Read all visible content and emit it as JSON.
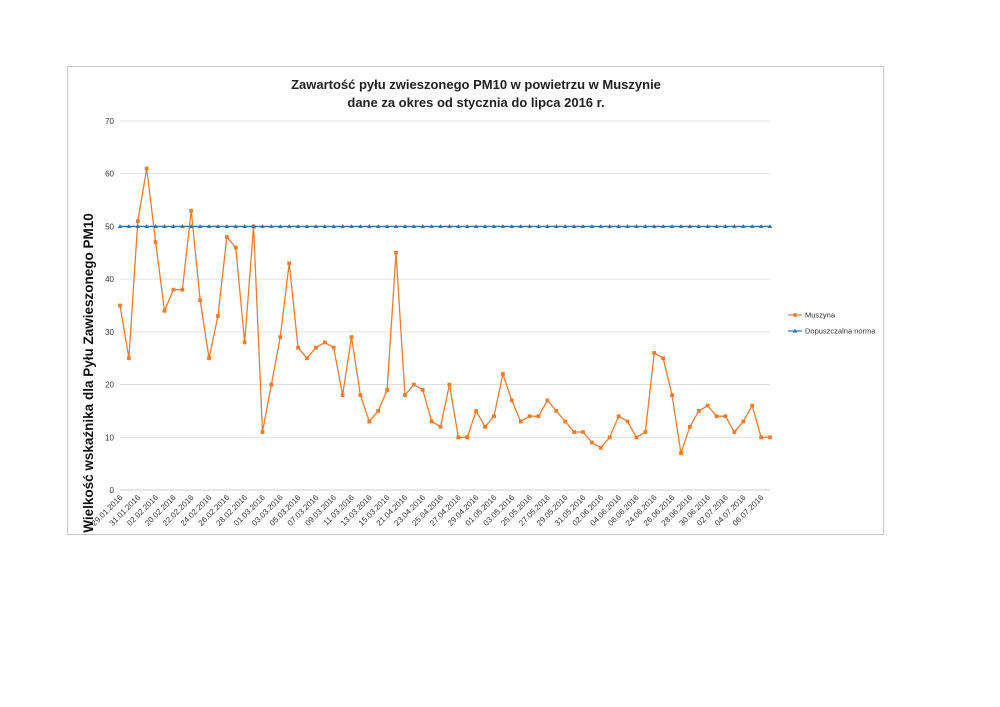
{
  "chart_data": {
    "type": "line",
    "title": "Zawartość pyłu zwieszonego PM10 w powietrzu w Muszynie",
    "subtitle": "dane za okres od stycznia do lipca 2016 r.",
    "xlabel": "",
    "ylabel": "Wielkość  wskaźnika dla Pyłu Zawieszonego PM10",
    "ylim": [
      0,
      70
    ],
    "yticks": [
      0,
      10,
      20,
      30,
      40,
      50,
      60,
      70
    ],
    "grid": true,
    "legend_position": "right",
    "x_tick_labels": [
      "29.01.2016",
      "31.01.2016",
      "02.02.2016",
      "20.02.2016",
      "22.02.2016",
      "24.02.2016",
      "26.02.2016",
      "28.02.2016",
      "01.03.2016",
      "03.03.2016",
      "05.03.2016",
      "07.03.2016",
      "09.03.2016",
      "11.03.2016",
      "13.03.2016",
      "15.03.2016",
      "21.04.2016",
      "23.04.2016",
      "25.04.2016",
      "27.04.2016",
      "29.04.2016",
      "01.05.2016",
      "03.05.2016",
      "25.05.2016",
      "27.05.2016",
      "29.05.2016",
      "31.05.2016",
      "02.06.2016",
      "04.06.2016",
      "06.06.2016",
      "24.06.2016",
      "26.06.2016",
      "28.06.2016",
      "30.06.2016",
      "02.07.2016",
      "04.07.2016",
      "06.07.2016"
    ],
    "series": [
      {
        "name": "Muszyna",
        "color": "#ed7d31",
        "marker": "square",
        "values": [
          35,
          25,
          51,
          61,
          47,
          34,
          38,
          38,
          53,
          36,
          25,
          33,
          48,
          46,
          28,
          50,
          11,
          20,
          29,
          43,
          27,
          25,
          27,
          28,
          27,
          18,
          29,
          18,
          13,
          15,
          19,
          45,
          18,
          20,
          19,
          13,
          12,
          20,
          10,
          10,
          15,
          12,
          14,
          22,
          17,
          13,
          14,
          14,
          17,
          15,
          13,
          11,
          11,
          9,
          8,
          10,
          14,
          13,
          10,
          11,
          26,
          25,
          18,
          7,
          12,
          15,
          16,
          14,
          14,
          11,
          13,
          16,
          10,
          10
        ]
      },
      {
        "name": "Dopuszczalna norma",
        "color": "#2e75b6",
        "marker": "triangle",
        "values": [
          50,
          50,
          50,
          50,
          50,
          50,
          50,
          50,
          50,
          50,
          50,
          50,
          50,
          50,
          50,
          50,
          50,
          50,
          50,
          50,
          50,
          50,
          50,
          50,
          50,
          50,
          50,
          50,
          50,
          50,
          50,
          50,
          50,
          50,
          50,
          50,
          50,
          50,
          50,
          50,
          50,
          50,
          50,
          50,
          50,
          50,
          50,
          50,
          50,
          50,
          50,
          50,
          50,
          50,
          50,
          50,
          50,
          50,
          50,
          50,
          50,
          50,
          50,
          50,
          50,
          50,
          50,
          50,
          50,
          50,
          50,
          50,
          50,
          50
        ]
      }
    ]
  }
}
